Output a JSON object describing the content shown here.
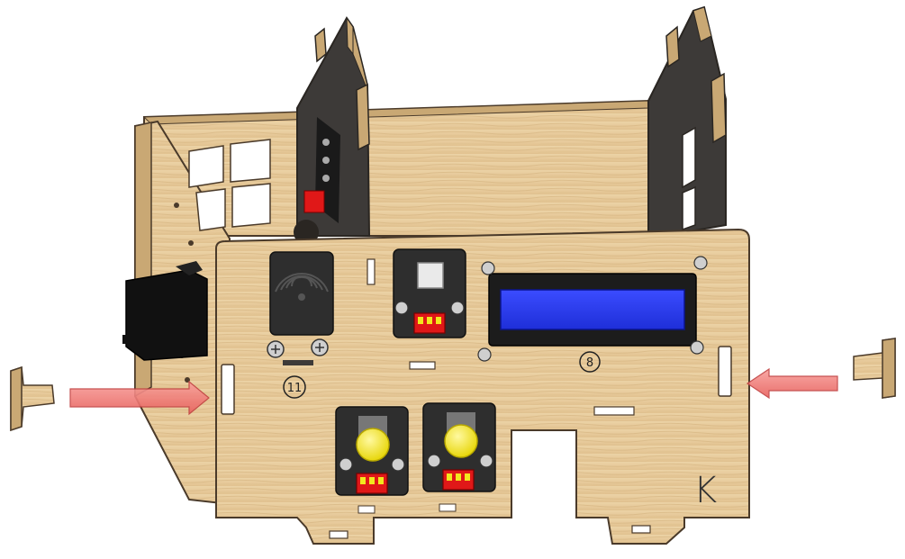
{
  "diagram": {
    "part_labels": {
      "front_panel": "8",
      "left_panel": "11",
      "corner_mark": "K"
    },
    "colors": {
      "wood": "#e8cb9a",
      "wood_dark": "#c9a874",
      "edge": "#4a3a2a",
      "arrow": "#f07a78",
      "lcd": "#2a3df0",
      "button": "#f2e81e",
      "connector": "#e01818"
    }
  }
}
